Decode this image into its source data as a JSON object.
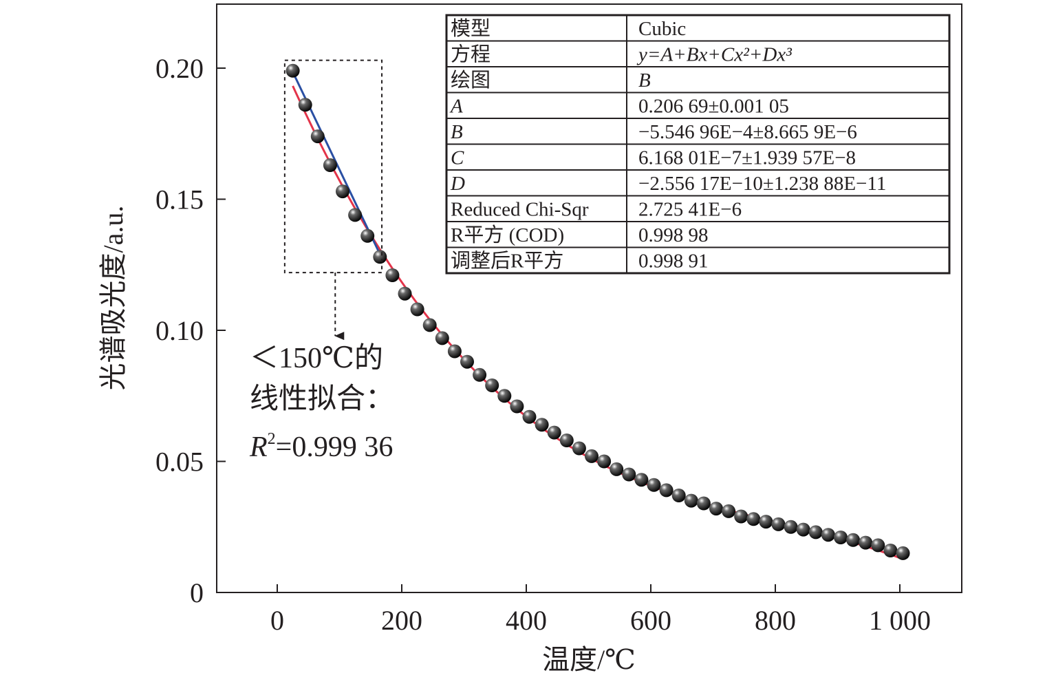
{
  "chart_data": {
    "type": "scatter",
    "xlabel": "温度/℃",
    "ylabel": "光谱吸光度/a.u.",
    "xlim": [
      -100,
      1100
    ],
    "ylim": [
      0,
      0.225
    ],
    "x_ticks": [
      0,
      200,
      400,
      600,
      800,
      1000
    ],
    "x_tick_labels": [
      "0",
      "200",
      "400",
      "600",
      "800",
      "1 000"
    ],
    "y_ticks": [
      0,
      0.05,
      0.1,
      0.15,
      0.2
    ],
    "y_tick_labels": [
      "0",
      "0.05",
      "0.10",
      "0.15",
      "0.20"
    ],
    "grid": false,
    "series": [
      {
        "kind": "points",
        "x": [
          25,
          45,
          65,
          85,
          105,
          125,
          145,
          165,
          185,
          205,
          225,
          245,
          265,
          285,
          305,
          325,
          345,
          365,
          385,
          405,
          425,
          445,
          465,
          485,
          505,
          525,
          545,
          565,
          585,
          605,
          625,
          645,
          665,
          685,
          705,
          725,
          745,
          765,
          785,
          805,
          825,
          845,
          865,
          885,
          905,
          925,
          945,
          965,
          985,
          1005
        ],
        "y": [
          0.199,
          0.186,
          0.174,
          0.163,
          0.153,
          0.144,
          0.136,
          0.128,
          0.121,
          0.114,
          0.108,
          0.102,
          0.097,
          0.092,
          0.088,
          0.083,
          0.079,
          0.075,
          0.071,
          0.067,
          0.064,
          0.061,
          0.058,
          0.055,
          0.052,
          0.05,
          0.047,
          0.045,
          0.043,
          0.041,
          0.039,
          0.037,
          0.035,
          0.034,
          0.032,
          0.031,
          0.029,
          0.028,
          0.027,
          0.026,
          0.025,
          0.024,
          0.023,
          0.022,
          0.021,
          0.02,
          0.019,
          0.018,
          0.016,
          0.015
        ],
        "color": "#111111"
      },
      {
        "kind": "cubic-fit",
        "coefficients": [
          0.20669,
          -0.000554696,
          6.16801e-07,
          -2.55617e-10
        ],
        "x_range": [
          25,
          1005
        ],
        "color": "#e3344a"
      },
      {
        "kind": "linear-fit",
        "x": [
          22,
          165
        ],
        "y": [
          0.2,
          0.129
        ],
        "color": "#2a4fa3"
      }
    ],
    "box_region": {
      "x": [
        12,
        168
      ],
      "y": [
        0.122,
        0.203
      ]
    },
    "annotation": {
      "line1": "＜150℃的",
      "line2": "线性拟合：",
      "r2_symbol": "R",
      "r2_sup": "2",
      "r2_value": "=0.999 36"
    },
    "fit_table": {
      "rows": [
        {
          "label": "模型",
          "value": "Cubic"
        },
        {
          "label": "方程",
          "value": "y=A+Bx+Cx²+Dx³"
        },
        {
          "label": "绘图",
          "value": "B"
        },
        {
          "label": "A",
          "value": "0.206 69±0.001 05"
        },
        {
          "label": "B",
          "value": "−5.546 96E−4±8.665 9E−6"
        },
        {
          "label": "C",
          "value": "6.168 01E−7±1.939 57E−8"
        },
        {
          "label": "D",
          "value": "−2.556 17E−10±1.238 88E−11"
        },
        {
          "label": "Reduced Chi-Sqr",
          "value": "2.725 41E−6"
        },
        {
          "label": "R平方 (COD)",
          "value": "0.998 98"
        },
        {
          "label": "调整后R平方",
          "value": "0.998 91"
        }
      ]
    }
  }
}
